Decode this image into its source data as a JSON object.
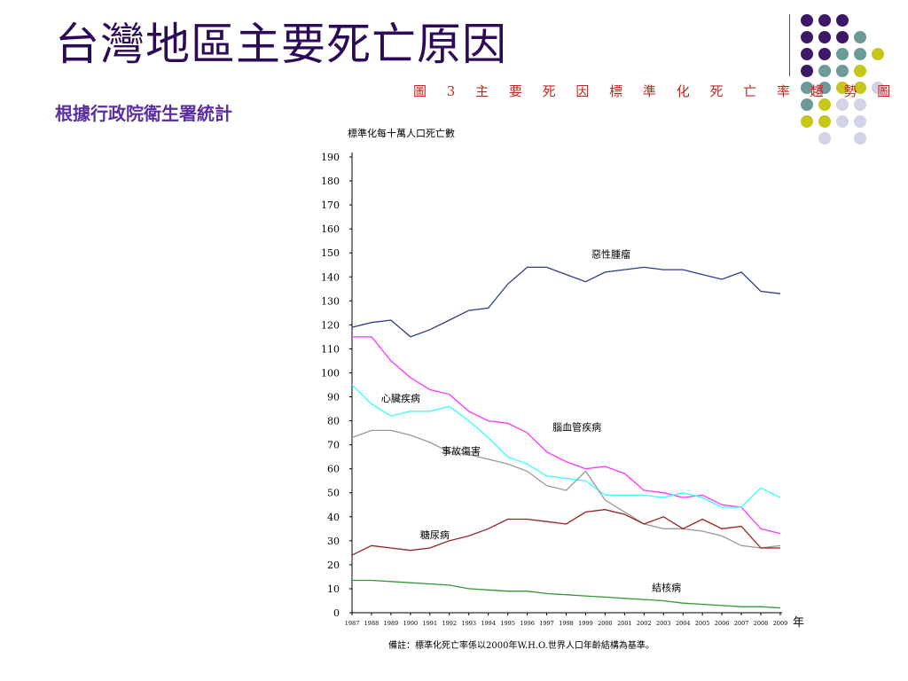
{
  "slide": {
    "title": "台灣地區主要死亡原因",
    "subtitle": "根據行政院衛生署統計"
  },
  "decoration": {
    "dot_colors": [
      "#3d1866",
      "#6b9a99",
      "#c7c71a",
      "#d3d3e6"
    ]
  },
  "chart_data": {
    "type": "line",
    "title": "圖 3 主 要 死 因 標 準 化 死 亡 率 趨 勢 圖",
    "ylabel": "標準化每十萬人口死亡數",
    "xlabel": "年",
    "ylim": [
      0,
      190
    ],
    "yticks": [
      0,
      10,
      20,
      30,
      40,
      50,
      60,
      70,
      80,
      90,
      100,
      110,
      120,
      130,
      140,
      150,
      160,
      170,
      180,
      190
    ],
    "x": [
      "1987",
      "1988",
      "1989",
      "1990",
      "1991",
      "1992",
      "1993",
      "1994",
      "1995",
      "1996",
      "1997",
      "1998",
      "1999",
      "2000",
      "2001",
      "2002",
      "2003",
      "2004",
      "2005",
      "2006",
      "2007",
      "2008",
      "2009"
    ],
    "grid": false,
    "note": "備註：標準化死亡率係以2000年W.H.O.世界人口年齡結構為基準。",
    "series": [
      {
        "name": "惡性腫瘤",
        "color": "#2e3a8c",
        "values": [
          119,
          121,
          122,
          115,
          118,
          122,
          126,
          127,
          137,
          144,
          144,
          141,
          138,
          142,
          143,
          144,
          143,
          143,
          141,
          139,
          142,
          134,
          133
        ]
      },
      {
        "name": "腦血管疾病",
        "color": "#ff33ff",
        "values": [
          115,
          115,
          105,
          98,
          93,
          91,
          84,
          80,
          79,
          75,
          67,
          63,
          60,
          61,
          58,
          51,
          50,
          48,
          49,
          45,
          44,
          35,
          33
        ]
      },
      {
        "name": "心臟疾病",
        "color": "#33ffff",
        "values": [
          95,
          87,
          82,
          84,
          84,
          86,
          80,
          73,
          65,
          62,
          57,
          56,
          55,
          49,
          49,
          49,
          48,
          50,
          48,
          44,
          44,
          52,
          48
        ]
      },
      {
        "name": "事故傷害",
        "color": "#999999",
        "values": [
          73,
          76,
          76,
          74,
          71,
          67,
          66,
          64,
          62,
          59,
          53,
          51,
          59,
          47,
          42,
          37,
          35,
          35,
          34,
          32,
          28,
          27,
          28
        ]
      },
      {
        "name": "糖尿病",
        "color": "#992222",
        "values": [
          24,
          28,
          27,
          26,
          27,
          30,
          32,
          35,
          39,
          39,
          38,
          37,
          42,
          43,
          41,
          37,
          40,
          35,
          39,
          35,
          36,
          27,
          27
        ]
      },
      {
        "name": "結核病",
        "color": "#339933",
        "values": [
          13.5,
          13.5,
          13,
          12.5,
          12,
          11.5,
          10,
          9.5,
          9,
          9,
          8,
          7.5,
          7,
          6.5,
          6,
          5.5,
          5,
          4,
          3.5,
          3,
          2.5,
          2.5,
          2
        ]
      }
    ],
    "annotations": [
      {
        "text": "惡性腫瘤",
        "x_index": 12.3,
        "y": 148
      },
      {
        "text": "心臟疾病",
        "x_index": 1.5,
        "y": 88
      },
      {
        "text": "腦血管疾病",
        "x_index": 10.3,
        "y": 76
      },
      {
        "text": "事故傷害",
        "x_index": 4.6,
        "y": 66
      },
      {
        "text": "糖尿病",
        "x_index": 3.5,
        "y": 31
      },
      {
        "text": "結核病",
        "x_index": 15.4,
        "y": 9
      }
    ]
  }
}
